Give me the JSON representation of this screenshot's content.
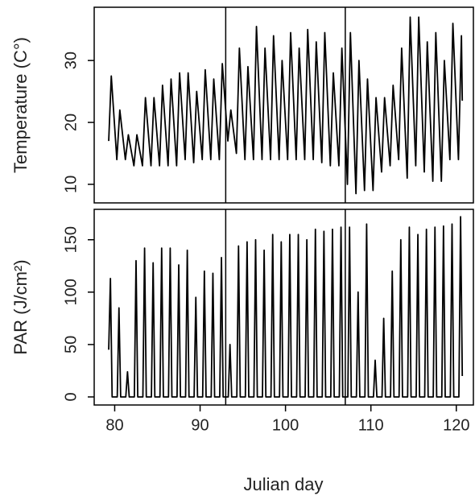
{
  "chart_data": [
    {
      "type": "line",
      "ylabel": "Temperature (C°)",
      "color": "#000000",
      "xlim": [
        77.6,
        122
      ],
      "ylim": [
        7,
        38.6
      ],
      "yticks": [
        10,
        20,
        30
      ],
      "vlines": [
        93,
        107
      ],
      "x": [
        79.3,
        79.6,
        80.25,
        80.6,
        81.25,
        81.6,
        82.25,
        82.6,
        83.25,
        83.6,
        84.25,
        84.6,
        85.25,
        85.6,
        86.25,
        86.6,
        87.25,
        87.6,
        88.25,
        88.6,
        89.25,
        89.6,
        90.25,
        90.6,
        91.25,
        91.6,
        92.25,
        92.6,
        93.25,
        93.6,
        94.25,
        94.6,
        95.25,
        95.6,
        96.25,
        96.6,
        97.25,
        97.6,
        98.25,
        98.6,
        99.25,
        99.6,
        100.25,
        100.6,
        101.25,
        101.6,
        102.25,
        102.6,
        103.25,
        103.6,
        104.25,
        104.6,
        105.25,
        105.6,
        106.25,
        106.6,
        107.25,
        107.6,
        108.25,
        108.6,
        109.25,
        109.6,
        110.25,
        110.6,
        111.25,
        111.6,
        112.25,
        112.6,
        113.25,
        113.6,
        114.25,
        114.6,
        115.25,
        115.6,
        116.25,
        116.6,
        117.25,
        117.6,
        118.25,
        118.6,
        119.25,
        119.6,
        120.25,
        120.6,
        120.7
      ],
      "values": [
        17,
        27.5,
        14,
        22,
        14,
        18,
        13,
        18,
        13,
        24,
        13,
        24,
        13,
        26,
        13,
        27,
        13,
        28,
        14,
        28,
        13.5,
        25,
        14,
        28.5,
        14,
        27,
        14,
        29.5,
        17,
        22,
        15,
        32,
        14,
        29,
        14,
        35.5,
        14,
        32,
        14,
        34,
        14,
        30,
        14,
        34.5,
        14,
        32,
        14,
        35,
        14,
        33,
        13.5,
        34.5,
        13,
        28,
        13,
        32,
        10,
        34.5,
        8.5,
        30,
        9,
        27,
        9,
        24,
        12,
        24,
        13,
        26,
        14,
        32,
        11,
        37,
        13,
        37,
        12,
        33,
        10.5,
        34.5,
        10.5,
        30,
        14,
        36,
        14,
        34,
        23.5
      ]
    },
    {
      "type": "line",
      "xlabel": "Julian day",
      "ylabel": "PAR (J/cm²)",
      "color": "#000000",
      "xlim": [
        77.6,
        122
      ],
      "xticks": [
        80,
        90,
        100,
        110,
        120
      ],
      "ylim": [
        -7.7,
        179
      ],
      "yticks": [
        0,
        50,
        100,
        150
      ],
      "vlines": [
        93,
        107
      ],
      "x": [
        79.3,
        79.5,
        79.7,
        80.3,
        80.5,
        80.7,
        81.3,
        81.5,
        81.7,
        82.3,
        82.5,
        82.7,
        83.3,
        83.5,
        83.7,
        84.3,
        84.5,
        84.7,
        85.3,
        85.5,
        85.7,
        86.3,
        86.5,
        86.7,
        87.3,
        87.5,
        87.7,
        88.3,
        88.5,
        88.7,
        89.3,
        89.5,
        89.7,
        90.3,
        90.5,
        90.7,
        91.3,
        91.5,
        91.7,
        92.3,
        92.5,
        92.7,
        93.3,
        93.5,
        93.7,
        94.3,
        94.5,
        94.7,
        95.3,
        95.5,
        95.7,
        96.3,
        96.5,
        96.7,
        97.3,
        97.5,
        97.7,
        98.3,
        98.5,
        98.7,
        99.3,
        99.5,
        99.7,
        100.3,
        100.5,
        100.7,
        101.3,
        101.5,
        101.7,
        102.3,
        102.5,
        102.7,
        103.3,
        103.5,
        103.7,
        104.3,
        104.5,
        104.7,
        105.3,
        105.5,
        105.7,
        106.3,
        106.5,
        106.7,
        107.3,
        107.5,
        107.7,
        108.3,
        108.5,
        108.7,
        109.3,
        109.5,
        109.7,
        110.3,
        110.5,
        110.7,
        111.3,
        111.5,
        111.7,
        112.3,
        112.5,
        112.7,
        113.3,
        113.5,
        113.7,
        114.3,
        114.5,
        114.7,
        115.3,
        115.5,
        115.7,
        116.3,
        116.5,
        116.7,
        117.3,
        117.5,
        117.7,
        118.3,
        118.5,
        118.7,
        119.3,
        119.5,
        119.7,
        120.3,
        120.5,
        120.7
      ],
      "values": [
        45,
        113,
        0,
        0,
        85,
        0,
        0,
        24,
        0,
        0,
        130,
        0,
        0,
        142,
        0,
        0,
        128,
        0,
        0,
        142,
        0,
        0,
        142,
        0,
        0,
        126,
        0,
        0,
        140,
        0,
        0,
        95,
        0,
        0,
        120,
        0,
        0,
        118,
        0,
        0,
        133,
        0,
        0,
        50,
        0,
        0,
        144,
        0,
        0,
        148,
        0,
        0,
        150,
        0,
        0,
        140,
        0,
        0,
        155,
        0,
        0,
        148,
        0,
        0,
        155,
        0,
        0,
        155,
        0,
        0,
        150,
        0,
        0,
        160,
        0,
        0,
        158,
        0,
        0,
        160,
        0,
        0,
        162,
        0,
        0,
        162,
        0,
        0,
        100,
        0,
        0,
        165,
        0,
        0,
        35,
        0,
        0,
        75,
        0,
        0,
        120,
        0,
        0,
        150,
        0,
        0,
        162,
        0,
        0,
        155,
        0,
        0,
        160,
        0,
        0,
        162,
        0,
        0,
        163,
        0,
        0,
        165,
        0,
        0,
        172,
        20
      ]
    }
  ]
}
